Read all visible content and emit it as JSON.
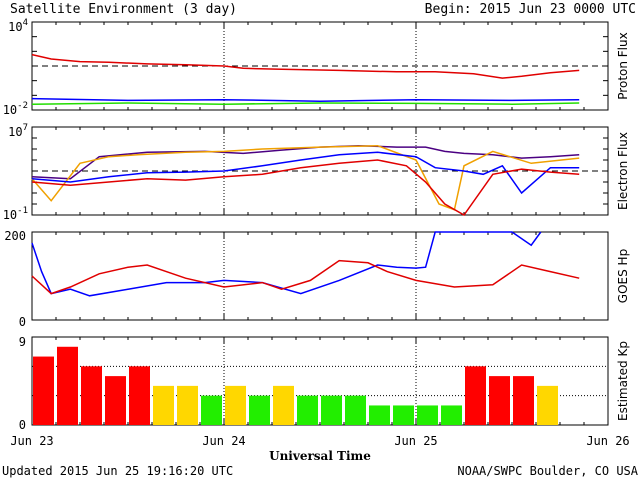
{
  "header": {
    "title": "Satellite Environment (3 day)",
    "begin": "Begin:  2015 Jun 23 0000 UTC"
  },
  "footer": {
    "updated": "Updated 2015 Jun 25 19:16:20 UTC",
    "source": "NOAA/SWPC Boulder, CO USA"
  },
  "chart_data": [
    {
      "type": "line",
      "panel": "proton",
      "ylabel": "Proton Flux",
      "yscale": "log",
      "ylim": [
        0.01,
        10000
      ],
      "ytick_labels": [
        {
          "base": "10",
          "exp": "4"
        },
        {
          "base": "10",
          "exp": "-2"
        }
      ],
      "threshold": 10,
      "x_unit": "days since Jun 23 0000 UTC",
      "xlim": [
        0,
        3
      ],
      "series": [
        {
          "color": "#e00000",
          "x": [
            0,
            0.1,
            0.25,
            0.4,
            0.6,
            0.8,
            1.0,
            1.1,
            1.3,
            1.6,
            1.9,
            2.1,
            2.3,
            2.45,
            2.55,
            2.7,
            2.85
          ],
          "y": [
            60,
            30,
            20,
            18,
            14,
            12,
            10,
            7,
            6,
            5,
            4,
            4,
            3,
            1.5,
            2,
            3.5,
            5
          ]
        },
        {
          "color": "#0000ff",
          "x": [
            0,
            0.5,
            1.0,
            1.5,
            2.0,
            2.5,
            2.85
          ],
          "y": [
            0.06,
            0.045,
            0.05,
            0.04,
            0.05,
            0.045,
            0.05
          ]
        },
        {
          "color": "#22dd00",
          "x": [
            0,
            0.5,
            1.0,
            1.5,
            2.0,
            2.5,
            2.85
          ],
          "y": [
            0.025,
            0.03,
            0.025,
            0.03,
            0.028,
            0.025,
            0.03
          ]
        }
      ]
    },
    {
      "type": "line",
      "panel": "electron",
      "ylabel": "Electron Flux",
      "yscale": "log",
      "ylim": [
        0.1,
        10000000
      ],
      "ytick_labels": [
        {
          "base": "10",
          "exp": "7"
        },
        {
          "base": "10",
          "exp": "-1"
        }
      ],
      "threshold": 1000,
      "x_unit": "days since Jun 23 0000 UTC",
      "xlim": [
        0,
        3
      ],
      "series": [
        {
          "color": "#4b0082",
          "x": [
            0,
            0.2,
            0.35,
            0.6,
            0.9,
            1.1,
            1.3,
            1.5,
            1.7,
            1.9,
            2.05,
            2.15,
            2.25,
            2.4,
            2.55,
            2.7,
            2.85
          ],
          "y": [
            300,
            200,
            20000,
            50000,
            60000,
            40000,
            80000,
            150000,
            200000,
            150000,
            150000,
            60000,
            40000,
            30000,
            15000,
            20000,
            30000
          ]
        },
        {
          "color": "#f0a000",
          "x": [
            0,
            0.1,
            0.25,
            0.4,
            0.55,
            0.8,
            1.0,
            1.2,
            1.5,
            1.8,
            2.0,
            2.12,
            2.2,
            2.25,
            2.4,
            2.6,
            2.85
          ],
          "y": [
            200,
            2,
            5000,
            20000,
            30000,
            50000,
            60000,
            100000,
            150000,
            200000,
            10000,
            1,
            0.3,
            3000,
            60000,
            5000,
            15000
          ]
        },
        {
          "color": "#0000ff",
          "x": [
            0,
            0.2,
            0.4,
            0.6,
            0.8,
            1.0,
            1.2,
            1.4,
            1.6,
            1.8,
            2.0,
            2.1,
            2.25,
            2.35,
            2.45,
            2.55,
            2.7,
            2.85
          ],
          "y": [
            200,
            100,
            300,
            700,
            800,
            1000,
            3000,
            10000,
            30000,
            50000,
            20000,
            2000,
            1000,
            500,
            3000,
            10,
            2000,
            2000
          ]
        },
        {
          "color": "#e00000",
          "x": [
            0,
            0.2,
            0.4,
            0.6,
            0.8,
            1.0,
            1.2,
            1.4,
            1.6,
            1.8,
            1.95,
            2.05,
            2.15,
            2.25,
            2.4,
            2.55,
            2.7,
            2.85
          ],
          "y": [
            100,
            50,
            100,
            200,
            150,
            300,
            500,
            2000,
            5000,
            10000,
            3000,
            100,
            1,
            0.1,
            500,
            1500,
            800,
            500
          ]
        }
      ]
    },
    {
      "type": "line",
      "panel": "goes-hp",
      "ylabel": "GOES Hp",
      "ylim": [
        0,
        200
      ],
      "yticks": [
        200,
        0
      ],
      "x_unit": "days since Jun 23 0000 UTC",
      "xlim": [
        0,
        3
      ],
      "series": [
        {
          "color": "#0000ff",
          "x": [
            0,
            0.05,
            0.1,
            0.2,
            0.3,
            0.5,
            0.7,
            0.9,
            1.0,
            1.2,
            1.4,
            1.6,
            1.8,
            1.9,
            2.0,
            2.05,
            2.1,
            2.15,
            2.5,
            2.55,
            2.6,
            2.65
          ],
          "y": [
            175,
            110,
            60,
            70,
            55,
            70,
            85,
            85,
            90,
            85,
            60,
            90,
            125,
            120,
            118,
            120,
            200,
            200,
            200,
            185,
            170,
            200
          ]
        },
        {
          "color": "#e00000",
          "x": [
            0,
            0.1,
            0.2,
            0.35,
            0.5,
            0.6,
            0.8,
            1.0,
            1.2,
            1.3,
            1.45,
            1.6,
            1.75,
            1.85,
            2.0,
            2.2,
            2.4,
            2.55,
            2.7,
            2.85
          ],
          "y": [
            100,
            60,
            75,
            105,
            120,
            125,
            95,
            75,
            85,
            70,
            90,
            135,
            130,
            110,
            90,
            75,
            80,
            125,
            110,
            95
          ]
        }
      ]
    },
    {
      "type": "bar",
      "panel": "kp",
      "ylabel": "Estimated Kp",
      "ylim": [
        0,
        9
      ],
      "yticks": [
        9,
        0
      ],
      "categories": [
        "Jun 23 00",
        "Jun 23 03",
        "Jun 23 06",
        "Jun 23 09",
        "Jun 23 12",
        "Jun 23 15",
        "Jun 23 18",
        "Jun 23 21",
        "Jun 24 00",
        "Jun 24 03",
        "Jun 24 06",
        "Jun 24 09",
        "Jun 24 12",
        "Jun 24 15",
        "Jun 24 18",
        "Jun 24 21",
        "Jun 25 00",
        "Jun 25 03",
        "Jun 25 06",
        "Jun 25 09",
        "Jun 25 12",
        "Jun 25 15"
      ],
      "values": [
        7,
        8,
        6,
        5,
        6,
        4,
        4,
        3,
        4,
        3,
        4,
        3,
        3,
        3,
        2,
        2,
        2,
        2,
        6,
        5,
        5,
        4
      ],
      "colors": [
        "#ff0000",
        "#ff0000",
        "#ff0000",
        "#ff0000",
        "#ff0000",
        "#ffd700",
        "#ffd700",
        "#22ee00",
        "#ffd700",
        "#22ee00",
        "#ffd700",
        "#22ee00",
        "#22ee00",
        "#22ee00",
        "#22ee00",
        "#22ee00",
        "#22ee00",
        "#22ee00",
        "#ff0000",
        "#ff0000",
        "#ff0000",
        "#ffd700"
      ]
    }
  ],
  "x_axis": {
    "title": "Universal Time",
    "tick_labels": [
      "Jun 23",
      "Jun 24",
      "Jun 25",
      "Jun 26"
    ]
  },
  "style": {
    "grid_line": "#000000",
    "threshold_line": "#000000"
  }
}
